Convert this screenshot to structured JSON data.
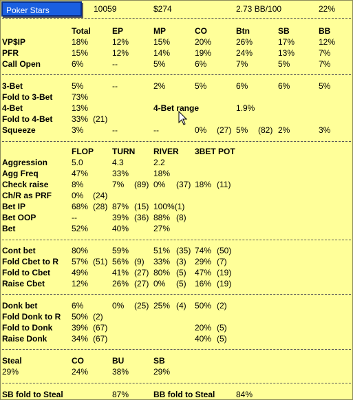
{
  "header": {
    "site": "Poker Stars",
    "hands": "10059",
    "won": "$274",
    "bb100": "2.73 BB/100",
    "pct": "22%"
  },
  "positions": {
    "headers": [
      "Total",
      "EP",
      "MP",
      "CO",
      "Btn",
      "SB",
      "BB"
    ],
    "rows": [
      {
        "label": "VP$IP",
        "values": [
          "18%",
          "12%",
          "15%",
          "20%",
          "26%",
          "17%",
          "12%"
        ]
      },
      {
        "label": "PFR",
        "values": [
          "15%",
          "12%",
          "14%",
          "19%",
          "24%",
          "13%",
          "7%"
        ]
      },
      {
        "label": "Call Open",
        "values": [
          "6%",
          "--",
          "5%",
          "6%",
          "7%",
          "5%",
          "7%"
        ]
      }
    ]
  },
  "threebet": {
    "bet3": {
      "label": "3-Bet",
      "values": [
        "5%",
        "--",
        "2%",
        "5%",
        "6%",
        "6%",
        "5%"
      ]
    },
    "fold3": {
      "label": "Fold to 3-Bet",
      "value": "73%"
    },
    "bet4": {
      "label": "4-Bet",
      "value": "13%",
      "range_label": "4-Bet range",
      "range_value": "1.9%"
    },
    "fold4": {
      "label": "Fold to 4-Bet",
      "value": "33%",
      "count": "(21)"
    },
    "squeeze": {
      "label": "Squeeze",
      "values": [
        "3%",
        "--",
        "--",
        "0%",
        "(27)",
        "5%",
        "(82)",
        "2%",
        "3%"
      ]
    }
  },
  "street": {
    "headers": [
      "FLOP",
      "TURN",
      "RIVER",
      "3BET POT"
    ],
    "rows": [
      {
        "label": "Aggression",
        "cells": [
          "5.0",
          "",
          "4.3",
          "",
          "2.2",
          "",
          "",
          ""
        ]
      },
      {
        "label": "Agg Freq",
        "cells": [
          "47%",
          "",
          "33%",
          "",
          "18%",
          "",
          "",
          ""
        ]
      },
      {
        "label": "Check raise",
        "cells": [
          "8%",
          "",
          "7%",
          "(89)",
          "0%",
          "(37)",
          "18%",
          "(11)"
        ]
      },
      {
        "label": "Ch/R as PRF",
        "cells": [
          "0%",
          "(24)",
          "",
          "",
          "",
          "",
          "",
          ""
        ]
      },
      {
        "label": "Bet IP",
        "cells": [
          "68%",
          "(28)",
          "87%",
          "(15)",
          "100%(1)",
          "",
          "",
          ""
        ]
      },
      {
        "label": "Bet OOP",
        "cells": [
          "--",
          "",
          "39%",
          "(36)",
          "88%",
          "(8)",
          "",
          ""
        ]
      },
      {
        "label": "Bet",
        "cells": [
          "52%",
          "",
          "40%",
          "",
          "27%",
          "",
          "",
          ""
        ]
      }
    ]
  },
  "cbet": {
    "rows": [
      {
        "label": "Cont bet",
        "cells": [
          "80%",
          "",
          "59%",
          "",
          "51%",
          "(35)",
          "74%",
          "(50)"
        ]
      },
      {
        "label": "Fold Cbet to R",
        "cells": [
          "57%",
          "(51)",
          "56%",
          "(9)",
          "33%",
          "(3)",
          "29%",
          "(7)"
        ]
      },
      {
        "label": "Fold to Cbet",
        "cells": [
          "49%",
          "",
          "41%",
          "(27)",
          "80%",
          "(5)",
          "47%",
          "(19)"
        ]
      },
      {
        "label": "Raise Cbet",
        "cells": [
          "12%",
          "",
          "26%",
          "(27)",
          "0%",
          "(5)",
          "16%",
          "(19)"
        ]
      }
    ]
  },
  "donk": {
    "rows": [
      {
        "label": "Donk bet",
        "cells": [
          "6%",
          "",
          "0%",
          "(25)",
          "25%",
          "(4)",
          "50%",
          "(2)"
        ]
      },
      {
        "label": "Fold Donk to R",
        "cells": [
          "50%",
          "(2)",
          "",
          "",
          "",
          "",
          "",
          ""
        ]
      },
      {
        "label": "Fold to Donk",
        "cells": [
          "39%",
          "(67)",
          "",
          "",
          "",
          "",
          "20%",
          "(5)"
        ]
      },
      {
        "label": "Raise Donk",
        "cells": [
          "34%",
          "(67)",
          "",
          "",
          "",
          "",
          "40%",
          "(5)"
        ]
      }
    ]
  },
  "steal": {
    "label": "Steal",
    "headers": [
      "CO",
      "BU",
      "SB"
    ],
    "total": "29%",
    "values": [
      "24%",
      "38%",
      "29%"
    ]
  },
  "blinds": {
    "sb_label": "SB fold to Steal",
    "sb_value": "87%",
    "bb_label": "BB fold to Steal",
    "bb_value": "84%"
  }
}
